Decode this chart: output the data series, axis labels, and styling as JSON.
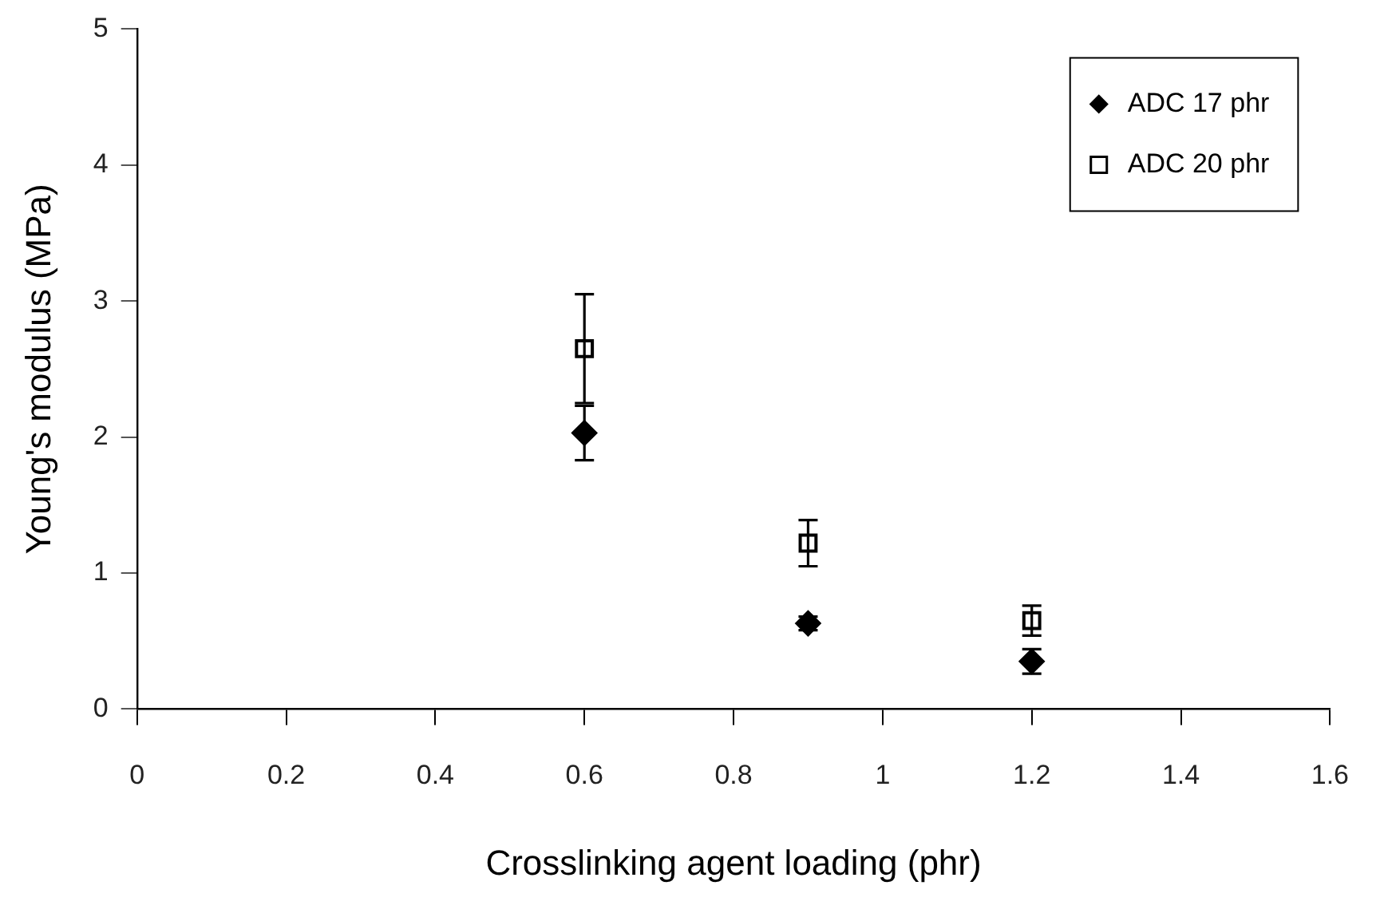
{
  "chart_data": {
    "type": "scatter",
    "xlabel": "Crosslinking agent loading (phr)",
    "ylabel": "Young's modulus (MPa)",
    "xlim": [
      0,
      1.6
    ],
    "xticks": [
      0,
      0.2,
      0.4,
      0.6,
      0.8,
      1,
      1.2,
      1.4,
      1.6
    ],
    "ylim": [
      0,
      5
    ],
    "yticks": [
      0,
      1,
      2,
      3,
      4,
      5
    ],
    "grid": false,
    "legend": "top right",
    "series": [
      {
        "name": "ADC 17 phr",
        "color": "#000000",
        "marker": "diamond",
        "x": [
          0.6,
          0.9,
          1.2
        ],
        "values": [
          2.03,
          0.63,
          0.35
        ],
        "errors": [
          0.2,
          0.05,
          0.09
        ]
      },
      {
        "name": "ADC 20 phr",
        "color": "#000000",
        "marker": "square",
        "x": [
          0.6,
          0.9,
          1.2
        ],
        "values": [
          2.65,
          1.22,
          0.65
        ],
        "errors": [
          0.4,
          0.17,
          0.11
        ]
      }
    ]
  }
}
